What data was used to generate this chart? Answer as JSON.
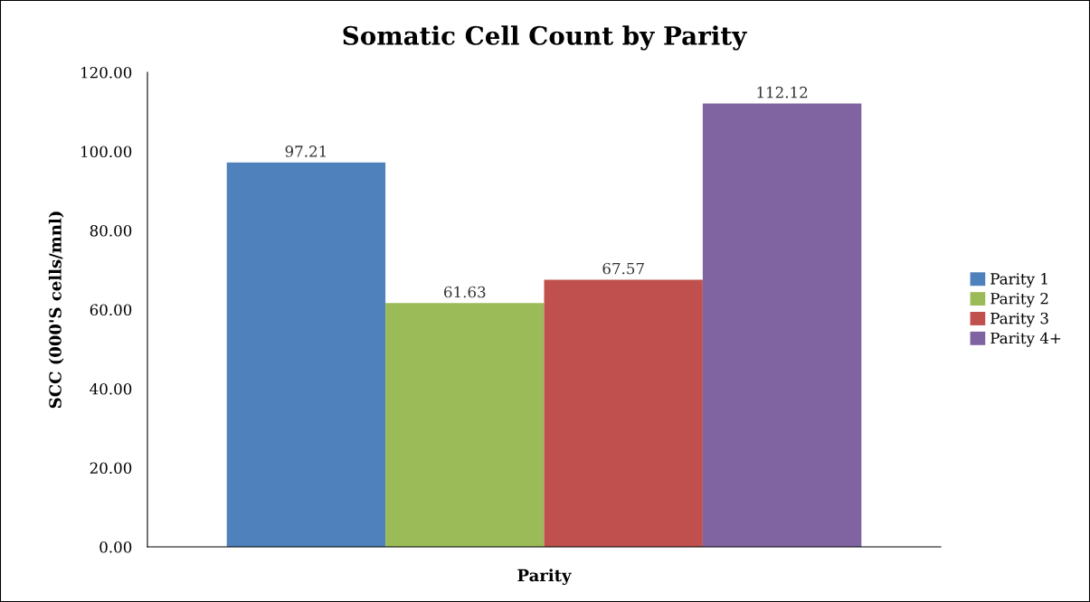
{
  "chart_data": {
    "type": "bar",
    "title": "Somatic Cell Count by Parity",
    "xlabel": "Parity",
    "ylabel": "SCC (000'S cells/mnl)",
    "categories": [
      null
    ],
    "series": [
      {
        "name": "Parity 1",
        "color": "#4f81bd",
        "values": [
          97.21
        ]
      },
      {
        "name": "Parity 2",
        "color": "#9bbb59",
        "values": [
          61.63
        ]
      },
      {
        "name": "Parity 3",
        "color": "#c0504d",
        "values": [
          67.57
        ]
      },
      {
        "name": "Parity 4+",
        "color": "#8064a2",
        "values": [
          112.12
        ]
      }
    ],
    "ylim": [
      0,
      120
    ],
    "yticks": [
      {
        "value": 0,
        "label": "0.00"
      },
      {
        "value": 20,
        "label": "20.00"
      },
      {
        "value": 40,
        "label": "40.00"
      },
      {
        "value": 60,
        "label": "60.00"
      },
      {
        "value": 80,
        "label": "80.00"
      },
      {
        "value": 100,
        "label": "100.00"
      },
      {
        "value": 120,
        "label": "120.00"
      }
    ],
    "data_labels": true,
    "legend": "right",
    "grid": false
  }
}
